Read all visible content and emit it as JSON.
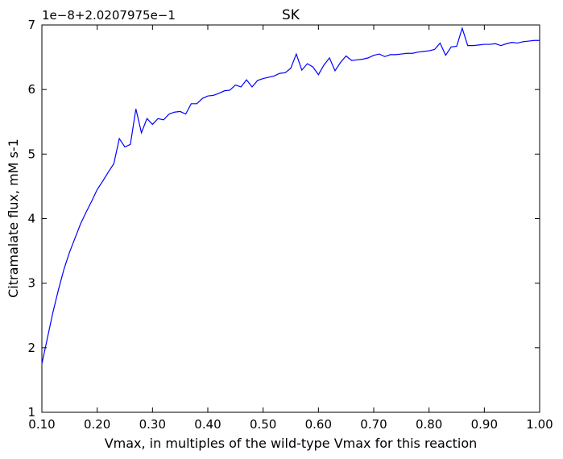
{
  "chart_data": {
    "type": "line",
    "title": "SK",
    "y_offset_label": "1e−8+2.0207975e−1",
    "xlabel": "Vmax, in multiples of the wild-type Vmax for this reaction",
    "ylabel": "Citramalate flux, mM s-1",
    "color": "#0000ff",
    "x": [
      0.1,
      0.11,
      0.12,
      0.13,
      0.14,
      0.15,
      0.16,
      0.17,
      0.18,
      0.19,
      0.2,
      0.21,
      0.22,
      0.23,
      0.24,
      0.25,
      0.26,
      0.27,
      0.28,
      0.29,
      0.3,
      0.31,
      0.32,
      0.33,
      0.34,
      0.35,
      0.36,
      0.37,
      0.38,
      0.39,
      0.4,
      0.41,
      0.42,
      0.43,
      0.44,
      0.45,
      0.46,
      0.47,
      0.48,
      0.49,
      0.5,
      0.51,
      0.52,
      0.53,
      0.54,
      0.55,
      0.56,
      0.57,
      0.58,
      0.59,
      0.6,
      0.61,
      0.62,
      0.63,
      0.64,
      0.65,
      0.66,
      0.67,
      0.68,
      0.69,
      0.7,
      0.71,
      0.72,
      0.73,
      0.74,
      0.75,
      0.76,
      0.77,
      0.78,
      0.79,
      0.8,
      0.81,
      0.82,
      0.83,
      0.84,
      0.85,
      0.86,
      0.87,
      0.88,
      0.89,
      0.9,
      0.91,
      0.92,
      0.93,
      0.94,
      0.95,
      0.96,
      0.97,
      0.98,
      0.99,
      1.0
    ],
    "values": [
      1.75,
      2.15,
      2.55,
      2.9,
      3.22,
      3.48,
      3.7,
      3.92,
      4.1,
      4.27,
      4.45,
      4.58,
      4.72,
      4.85,
      5.24,
      5.11,
      5.15,
      5.7,
      5.33,
      5.55,
      5.46,
      5.55,
      5.53,
      5.62,
      5.65,
      5.66,
      5.62,
      5.78,
      5.78,
      5.86,
      5.9,
      5.91,
      5.94,
      5.98,
      5.99,
      6.07,
      6.04,
      6.15,
      6.04,
      6.14,
      6.17,
      6.19,
      6.21,
      6.25,
      6.26,
      6.33,
      6.55,
      6.3,
      6.4,
      6.35,
      6.23,
      6.38,
      6.49,
      6.29,
      6.42,
      6.52,
      6.45,
      6.46,
      6.47,
      6.49,
      6.53,
      6.55,
      6.51,
      6.54,
      6.54,
      6.55,
      6.56,
      6.56,
      6.58,
      6.59,
      6.6,
      6.62,
      6.72,
      6.53,
      6.66,
      6.67,
      6.95,
      6.68,
      6.68,
      6.69,
      6.7,
      6.7,
      6.71,
      6.68,
      6.71,
      6.73,
      6.72,
      6.74,
      6.75,
      6.76,
      6.76
    ],
    "xlim": [
      0.1,
      1.0
    ],
    "xticks": [
      {
        "value": 0.1,
        "label": "0.10"
      },
      {
        "value": 0.2,
        "label": "0.20"
      },
      {
        "value": 0.3,
        "label": "0.30"
      },
      {
        "value": 0.4,
        "label": "0.40"
      },
      {
        "value": 0.5,
        "label": "0.50"
      },
      {
        "value": 0.6,
        "label": "0.60"
      },
      {
        "value": 0.7,
        "label": "0.70"
      },
      {
        "value": 0.8,
        "label": "0.80"
      },
      {
        "value": 0.9,
        "label": "0.90"
      },
      {
        "value": 1.0,
        "label": "1.00"
      }
    ],
    "ylim": [
      1,
      7
    ],
    "yticks": [
      1,
      2,
      3,
      4,
      5,
      6,
      7
    ],
    "grid": false
  }
}
